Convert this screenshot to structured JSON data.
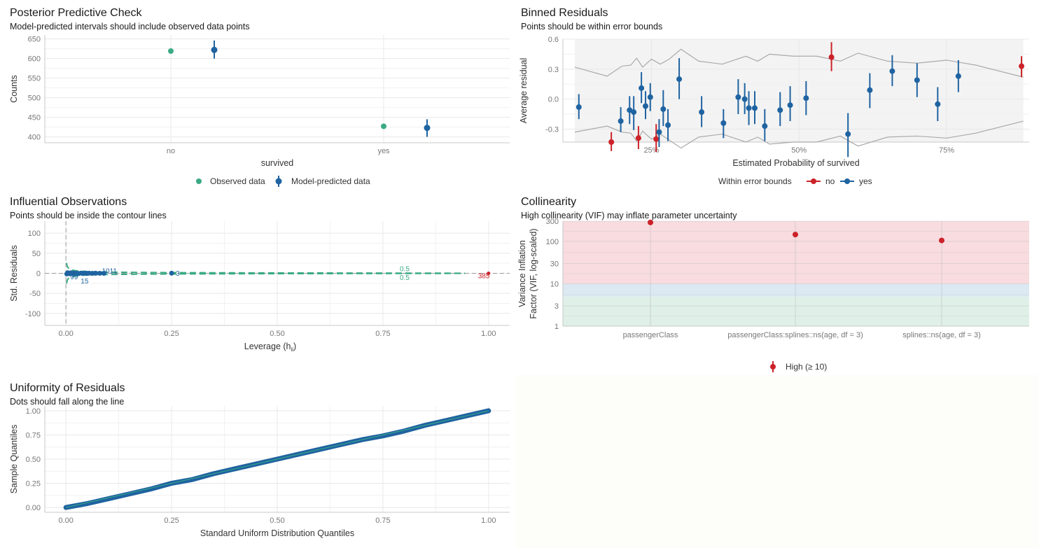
{
  "colors": {
    "green": "#3aaa84",
    "blue": "#1f63a1",
    "red": "#cc2229",
    "grid": "#e8e8e8",
    "band_high": "#f8dcdf",
    "band_moderate": "#dce8f2",
    "band_low": "#dff0e8"
  },
  "chart_data": [
    {
      "id": "ppc",
      "type": "scatter",
      "title": "Posterior Predictive Check",
      "subtitle": "Model-predicted intervals should include observed data points",
      "xlabel": "survived",
      "ylabel": "Counts",
      "categories": [
        "no",
        "yes"
      ],
      "ylim": [
        385,
        660
      ],
      "yticks": [
        400,
        450,
        500,
        550,
        600,
        650
      ],
      "observed": [
        619,
        427
      ],
      "predicted": [
        {
          "mean": 622,
          "low": 600,
          "high": 646
        },
        {
          "mean": 423,
          "low": 400,
          "high": 445
        }
      ],
      "legend": [
        "Observed data",
        "Model-predicted data"
      ],
      "legend_position": "bottom",
      "grid": true
    },
    {
      "id": "binned",
      "type": "scatter",
      "title": "Binned Residuals",
      "subtitle": "Points should be within error bounds",
      "xlabel": "Estimated Probability of survived",
      "ylabel": "Average residual",
      "xlim": [
        0.1,
        0.89
      ],
      "ylim": [
        -0.43,
        0.6
      ],
      "xticks": [
        0.25,
        0.5,
        0.75
      ],
      "xtick_labels": [
        "25%",
        "50%",
        "75%"
      ],
      "yticks": [
        -0.3,
        0.0,
        0.3,
        0.6
      ],
      "ytick_labels": [
        "-0.3",
        "0.0",
        "0.3",
        "0.6"
      ],
      "legend_title": "Within error bounds",
      "legend": [
        "no",
        "yes"
      ],
      "legend_position": "bottom",
      "bounds_upper": {
        "x": [
          0.12,
          0.175,
          0.2,
          0.215,
          0.225,
          0.235,
          0.25,
          0.265,
          0.28,
          0.3,
          0.33,
          0.37,
          0.41,
          0.43,
          0.45,
          0.49,
          0.53,
          0.57,
          0.6,
          0.65,
          0.7,
          0.75,
          0.8,
          0.88
        ],
        "y": [
          0.32,
          0.23,
          0.33,
          0.34,
          0.41,
          0.32,
          0.4,
          0.35,
          0.4,
          0.5,
          0.38,
          0.35,
          0.43,
          0.38,
          0.45,
          0.43,
          0.43,
          0.38,
          0.46,
          0.38,
          0.36,
          0.39,
          0.34,
          0.22
        ]
      },
      "bounds_lower": {
        "x": [
          0.12,
          0.175,
          0.2,
          0.215,
          0.225,
          0.235,
          0.25,
          0.265,
          0.28,
          0.3,
          0.33,
          0.37,
          0.41,
          0.43,
          0.45,
          0.49,
          0.53,
          0.57,
          0.6,
          0.65,
          0.7,
          0.75,
          0.8,
          0.88
        ],
        "y": [
          -0.33,
          -0.27,
          -0.33,
          -0.34,
          -0.42,
          -0.32,
          -0.4,
          -0.35,
          -0.41,
          -0.49,
          -0.38,
          -0.35,
          -0.43,
          -0.38,
          -0.45,
          -0.43,
          -0.43,
          -0.37,
          -0.47,
          -0.38,
          -0.37,
          -0.39,
          -0.34,
          -0.22
        ]
      },
      "points": [
        {
          "x": 0.127,
          "y": -0.08,
          "low": -0.2,
          "high": 0.05,
          "ok": true
        },
        {
          "x": 0.182,
          "y": -0.43,
          "low": -0.52,
          "high": -0.33,
          "ok": false
        },
        {
          "x": 0.198,
          "y": -0.22,
          "low": -0.33,
          "high": -0.08,
          "ok": true
        },
        {
          "x": 0.213,
          "y": -0.11,
          "low": -0.25,
          "high": 0.03,
          "ok": true
        },
        {
          "x": 0.22,
          "y": -0.13,
          "low": -0.31,
          "high": 0.03,
          "ok": true
        },
        {
          "x": 0.228,
          "y": -0.39,
          "low": -0.5,
          "high": -0.27,
          "ok": false
        },
        {
          "x": 0.233,
          "y": 0.11,
          "low": -0.04,
          "high": 0.27,
          "ok": true
        },
        {
          "x": 0.24,
          "y": -0.07,
          "low": -0.2,
          "high": 0.08,
          "ok": true
        },
        {
          "x": 0.248,
          "y": 0.02,
          "low": -0.12,
          "high": 0.16,
          "ok": true
        },
        {
          "x": 0.258,
          "y": -0.4,
          "low": -0.53,
          "high": -0.25,
          "ok": false
        },
        {
          "x": 0.263,
          "y": -0.33,
          "low": -0.48,
          "high": -0.2,
          "ok": true
        },
        {
          "x": 0.27,
          "y": -0.1,
          "low": -0.27,
          "high": 0.09,
          "ok": true
        },
        {
          "x": 0.278,
          "y": -0.26,
          "low": -0.42,
          "high": -0.1,
          "ok": true
        },
        {
          "x": 0.297,
          "y": 0.2,
          "low": 0.0,
          "high": 0.41,
          "ok": true
        },
        {
          "x": 0.335,
          "y": -0.13,
          "low": -0.28,
          "high": 0.03,
          "ok": true
        },
        {
          "x": 0.372,
          "y": -0.24,
          "low": -0.39,
          "high": -0.1,
          "ok": true
        },
        {
          "x": 0.397,
          "y": 0.02,
          "low": -0.15,
          "high": 0.2,
          "ok": true
        },
        {
          "x": 0.408,
          "y": 0.0,
          "low": -0.15,
          "high": 0.16,
          "ok": true
        },
        {
          "x": 0.415,
          "y": -0.09,
          "low": -0.26,
          "high": 0.08,
          "ok": true
        },
        {
          "x": 0.425,
          "y": -0.09,
          "low": -0.25,
          "high": 0.08,
          "ok": true
        },
        {
          "x": 0.442,
          "y": -0.27,
          "low": -0.42,
          "high": -0.1,
          "ok": true
        },
        {
          "x": 0.468,
          "y": -0.11,
          "low": -0.27,
          "high": 0.07,
          "ok": true
        },
        {
          "x": 0.485,
          "y": -0.06,
          "low": -0.22,
          "high": 0.13,
          "ok": true
        },
        {
          "x": 0.512,
          "y": 0.01,
          "low": -0.16,
          "high": 0.18,
          "ok": true
        },
        {
          "x": 0.555,
          "y": 0.42,
          "low": 0.28,
          "high": 0.57,
          "ok": false
        },
        {
          "x": 0.583,
          "y": -0.35,
          "low": -0.58,
          "high": -0.14,
          "ok": true
        },
        {
          "x": 0.62,
          "y": 0.09,
          "low": -0.09,
          "high": 0.26,
          "ok": true
        },
        {
          "x": 0.658,
          "y": 0.28,
          "low": 0.13,
          "high": 0.44,
          "ok": true
        },
        {
          "x": 0.7,
          "y": 0.19,
          "low": 0.02,
          "high": 0.36,
          "ok": true
        },
        {
          "x": 0.735,
          "y": -0.05,
          "low": -0.22,
          "high": 0.12,
          "ok": true
        },
        {
          "x": 0.77,
          "y": 0.23,
          "low": 0.07,
          "high": 0.39,
          "ok": true
        },
        {
          "x": 0.877,
          "y": 0.33,
          "low": 0.22,
          "high": 0.43,
          "ok": false
        }
      ]
    },
    {
      "id": "influential",
      "type": "scatter",
      "title": "Influential Observations",
      "subtitle": "Points should be inside the contour lines",
      "xlabel": "Leverage (h",
      "xlabel_sub": "ii",
      "xlabel_end": ")",
      "ylabel": "Std. Residuals",
      "xlim": [
        -0.05,
        1.05
      ],
      "ylim": [
        -130,
        130
      ],
      "xticks": [
        0,
        0.25,
        0.5,
        0.75,
        1.0
      ],
      "xtick_labels": [
        "0.00",
        "0.25",
        "0.50",
        "0.75",
        "1.00"
      ],
      "yticks": [
        -100,
        -50,
        0,
        50,
        100
      ],
      "grid": true,
      "labels": [
        {
          "text": "1011",
          "x": 0.085,
          "y": 7,
          "color": "#1f63a1"
        },
        {
          "text": "15",
          "x": 0.035,
          "y": -18,
          "color": "#1f63a1"
        },
        {
          "text": "99",
          "x": 0.01,
          "y": -8,
          "color": "#1f63a1"
        },
        {
          "text": "3",
          "x": 0.26,
          "y": 1,
          "color": "#1f63a1"
        },
        {
          "text": "0.5",
          "x": 0.79,
          "y": 12,
          "color": "#3aaa84"
        },
        {
          "text": "0.5",
          "x": 0.79,
          "y": -10,
          "color": "#3aaa84"
        },
        {
          "text": "385",
          "x": 0.975,
          "y": -5,
          "color": "#cc2229"
        }
      ],
      "points": [
        {
          "x": 0.002,
          "y": -1.5,
          "ok": true
        },
        {
          "x": 0.004,
          "y": 1.2,
          "ok": true
        },
        {
          "x": 0.006,
          "y": -0.8,
          "ok": true
        },
        {
          "x": 0.008,
          "y": 0.5,
          "ok": true
        },
        {
          "x": 0.01,
          "y": -1.0,
          "ok": true
        },
        {
          "x": 0.012,
          "y": 1.3,
          "ok": true
        },
        {
          "x": 0.015,
          "y": -0.4,
          "ok": true
        },
        {
          "x": 0.018,
          "y": 0.9,
          "ok": true
        },
        {
          "x": 0.02,
          "y": -1.2,
          "ok": true
        },
        {
          "x": 0.024,
          "y": 0.2,
          "ok": true
        },
        {
          "x": 0.03,
          "y": -0.6,
          "ok": true
        },
        {
          "x": 0.035,
          "y": 0.4,
          "ok": true
        },
        {
          "x": 0.04,
          "y": -0.3,
          "ok": true
        },
        {
          "x": 0.045,
          "y": 0.6,
          "ok": true
        },
        {
          "x": 0.05,
          "y": -0.5,
          "ok": true
        },
        {
          "x": 0.055,
          "y": 0.3,
          "ok": true
        },
        {
          "x": 0.062,
          "y": -0.2,
          "ok": true
        },
        {
          "x": 0.07,
          "y": 0.2,
          "ok": true
        },
        {
          "x": 0.08,
          "y": 0.1,
          "ok": true
        },
        {
          "x": 0.09,
          "y": -0.1,
          "ok": true
        },
        {
          "x": 0.25,
          "y": 0.3,
          "ok": true
        },
        {
          "x": 1.0,
          "y": 0.0,
          "ok": false
        }
      ]
    },
    {
      "id": "vif",
      "type": "scatter",
      "title": "Collinearity",
      "subtitle": "High collinearity (VIF) may inflate parameter uncertainty",
      "ylabel": "Variance Inflation",
      "ylabel2": "Factor (VIF, log-scaled)",
      "y_scale": "log",
      "ylim": [
        1,
        300
      ],
      "yticks": [
        1,
        3,
        10,
        30,
        100,
        300
      ],
      "categories": [
        "passengerClass",
        "passengerClass:splines::ns(age, df = 3)",
        "splines::ns(age, df = 3)"
      ],
      "values": [
        280,
        145,
        105
      ],
      "legend": [
        "High (≥ 10)"
      ],
      "legend_position": "bottom"
    },
    {
      "id": "qq",
      "type": "line",
      "title": "Uniformity of Residuals",
      "subtitle": "Dots should fall along the line",
      "xlabel": "Standard Uniform Distribution Quantiles",
      "ylabel": "Sample Quantiles",
      "xlim": [
        -0.05,
        1.05
      ],
      "ylim": [
        -0.05,
        1.05
      ],
      "xticks": [
        0,
        0.25,
        0.5,
        0.75,
        1.0
      ],
      "xtick_labels": [
        "0.00",
        "0.25",
        "0.50",
        "0.75",
        "1.00"
      ],
      "yticks": [
        0,
        0.25,
        0.5,
        0.75,
        1.0
      ],
      "ytick_labels": [
        "0.00",
        "0.25",
        "0.50",
        "0.75",
        "1.00"
      ],
      "x": [
        0,
        0.05,
        0.1,
        0.15,
        0.2,
        0.25,
        0.3,
        0.35,
        0.4,
        0.45,
        0.5,
        0.55,
        0.6,
        0.65,
        0.7,
        0.75,
        0.8,
        0.85,
        0.9,
        0.95,
        1.0
      ],
      "y": [
        0,
        0.04,
        0.09,
        0.14,
        0.19,
        0.25,
        0.29,
        0.35,
        0.4,
        0.45,
        0.5,
        0.55,
        0.6,
        0.65,
        0.7,
        0.74,
        0.79,
        0.85,
        0.9,
        0.95,
        1.0
      ]
    }
  ]
}
